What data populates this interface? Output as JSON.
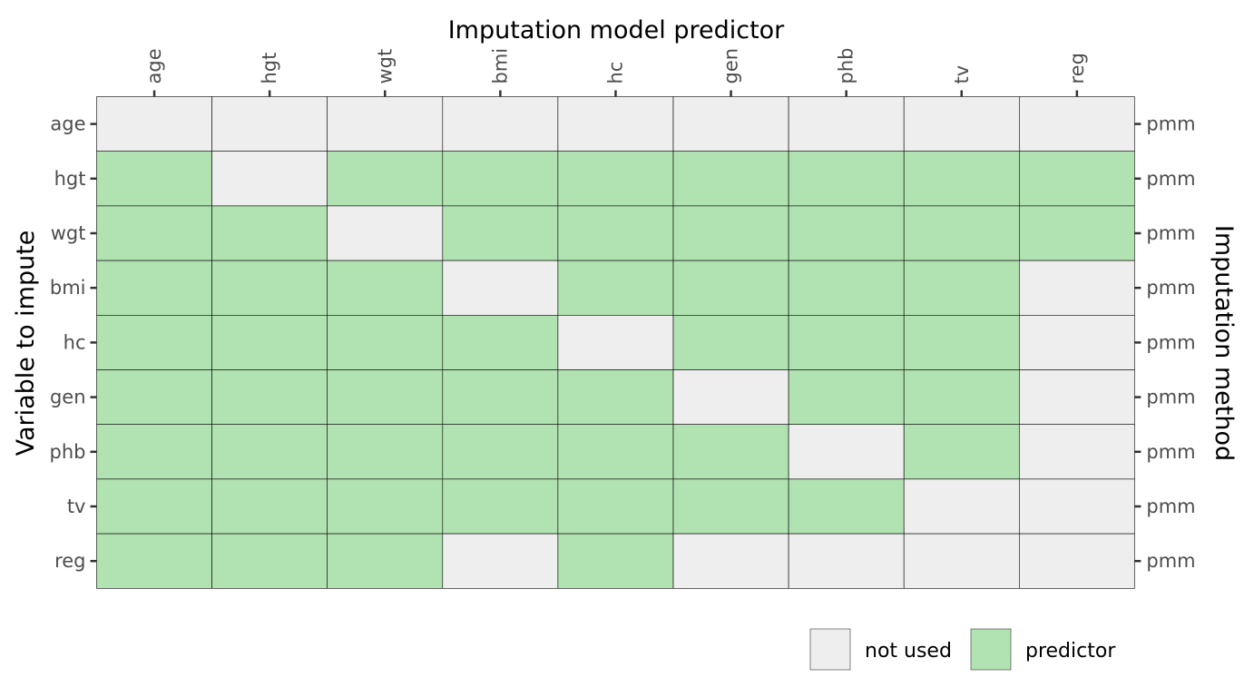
{
  "chart_data": {
    "type": "heatmap",
    "x_title": "Imputation model predictor",
    "y_title": "Variable to impute",
    "y2_title": "Imputation method",
    "columns": [
      "age",
      "hgt",
      "wgt",
      "bmi",
      "hc",
      "gen",
      "phb",
      "tv",
      "reg"
    ],
    "rows": [
      "age",
      "hgt",
      "wgt",
      "bmi",
      "hc",
      "gen",
      "phb",
      "tv",
      "reg"
    ],
    "methods": [
      "pmm",
      "pmm",
      "pmm",
      "pmm",
      "pmm",
      "pmm",
      "pmm",
      "pmm",
      "pmm"
    ],
    "matrix": [
      [
        0,
        0,
        0,
        0,
        0,
        0,
        0,
        0,
        0
      ],
      [
        1,
        0,
        1,
        1,
        1,
        1,
        1,
        1,
        1
      ],
      [
        1,
        1,
        0,
        1,
        1,
        1,
        1,
        1,
        1
      ],
      [
        1,
        1,
        1,
        0,
        1,
        1,
        1,
        1,
        0
      ],
      [
        1,
        1,
        1,
        1,
        0,
        1,
        1,
        1,
        0
      ],
      [
        1,
        1,
        1,
        1,
        1,
        0,
        1,
        1,
        0
      ],
      [
        1,
        1,
        1,
        1,
        1,
        1,
        0,
        1,
        0
      ],
      [
        1,
        1,
        1,
        1,
        1,
        1,
        1,
        0,
        0
      ],
      [
        1,
        1,
        1,
        0,
        1,
        0,
        0,
        0,
        0
      ]
    ],
    "legend": [
      {
        "label": "not used",
        "value": 0,
        "color": "#eeeeee"
      },
      {
        "label": "predictor",
        "value": 1,
        "color": "#b1e2b1"
      }
    ],
    "legend_position": "bottom-right",
    "colors": {
      "not_used": "#eeeeee",
      "predictor": "#b1e2b1",
      "grid": "#000000"
    }
  }
}
